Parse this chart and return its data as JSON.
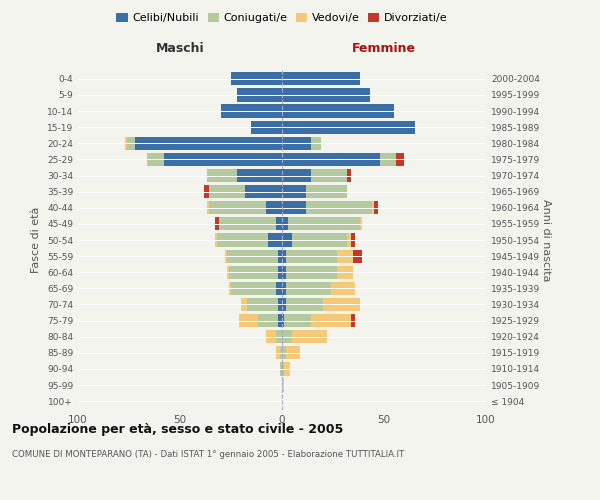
{
  "age_groups": [
    "100+",
    "95-99",
    "90-94",
    "85-89",
    "80-84",
    "75-79",
    "70-74",
    "65-69",
    "60-64",
    "55-59",
    "50-54",
    "45-49",
    "40-44",
    "35-39",
    "30-34",
    "25-29",
    "20-24",
    "15-19",
    "10-14",
    "5-9",
    "0-4"
  ],
  "birth_years": [
    "≤ 1904",
    "1905-1909",
    "1910-1914",
    "1915-1919",
    "1920-1924",
    "1925-1929",
    "1930-1934",
    "1935-1939",
    "1940-1944",
    "1945-1949",
    "1950-1954",
    "1955-1959",
    "1960-1964",
    "1965-1969",
    "1970-1974",
    "1975-1979",
    "1980-1984",
    "1985-1989",
    "1990-1994",
    "1995-1999",
    "2000-2004"
  ],
  "maschi": {
    "celibi": [
      0,
      0,
      0,
      0,
      0,
      2,
      2,
      3,
      2,
      2,
      7,
      3,
      8,
      18,
      22,
      58,
      72,
      15,
      30,
      22,
      25
    ],
    "coniugati": [
      0,
      0,
      1,
      1,
      3,
      10,
      15,
      22,
      24,
      25,
      25,
      28,
      28,
      18,
      15,
      8,
      4,
      0,
      0,
      0,
      0
    ],
    "vedovi": [
      0,
      0,
      0,
      2,
      5,
      9,
      3,
      1,
      1,
      1,
      1,
      0,
      1,
      0,
      0,
      0,
      1,
      0,
      0,
      0,
      0
    ],
    "divorziati": [
      0,
      0,
      0,
      0,
      0,
      0,
      0,
      0,
      0,
      0,
      0,
      2,
      0,
      2,
      0,
      0,
      0,
      0,
      0,
      0,
      0
    ]
  },
  "femmine": {
    "nubili": [
      0,
      0,
      0,
      0,
      0,
      1,
      2,
      2,
      2,
      2,
      5,
      3,
      12,
      12,
      14,
      48,
      14,
      65,
      55,
      43,
      38
    ],
    "coniugate": [
      0,
      0,
      1,
      2,
      5,
      13,
      18,
      22,
      25,
      25,
      27,
      35,
      32,
      20,
      18,
      8,
      5,
      0,
      0,
      0,
      0
    ],
    "vedove": [
      0,
      1,
      3,
      7,
      17,
      20,
      18,
      12,
      8,
      8,
      2,
      1,
      1,
      0,
      0,
      0,
      0,
      0,
      0,
      0,
      0
    ],
    "divorziate": [
      0,
      0,
      0,
      0,
      0,
      2,
      0,
      0,
      0,
      4,
      2,
      0,
      2,
      0,
      2,
      4,
      0,
      0,
      0,
      0,
      0
    ]
  },
  "colors": {
    "celibi": "#3a6ea5",
    "coniugati": "#b5c9a0",
    "vedovi": "#f5c97a",
    "divorziati": "#c0392b"
  },
  "xlim": 100,
  "title": "Popolazione per età, sesso e stato civile - 2005",
  "subtitle": "COMUNE DI MONTEPARANO (TA) - Dati ISTAT 1° gennaio 2005 - Elaborazione TUTTITALIA.IT",
  "ylabel_left": "Fasce di età",
  "ylabel_right": "Anni di nascita",
  "xlabel_left": "Maschi",
  "xlabel_right": "Femmine",
  "legend_labels": [
    "Celibi/Nubili",
    "Coniugati/e",
    "Vedovi/e",
    "Divorziati/e"
  ],
  "bg_color": "#f4f4ee",
  "grid_color": "#ffffff"
}
